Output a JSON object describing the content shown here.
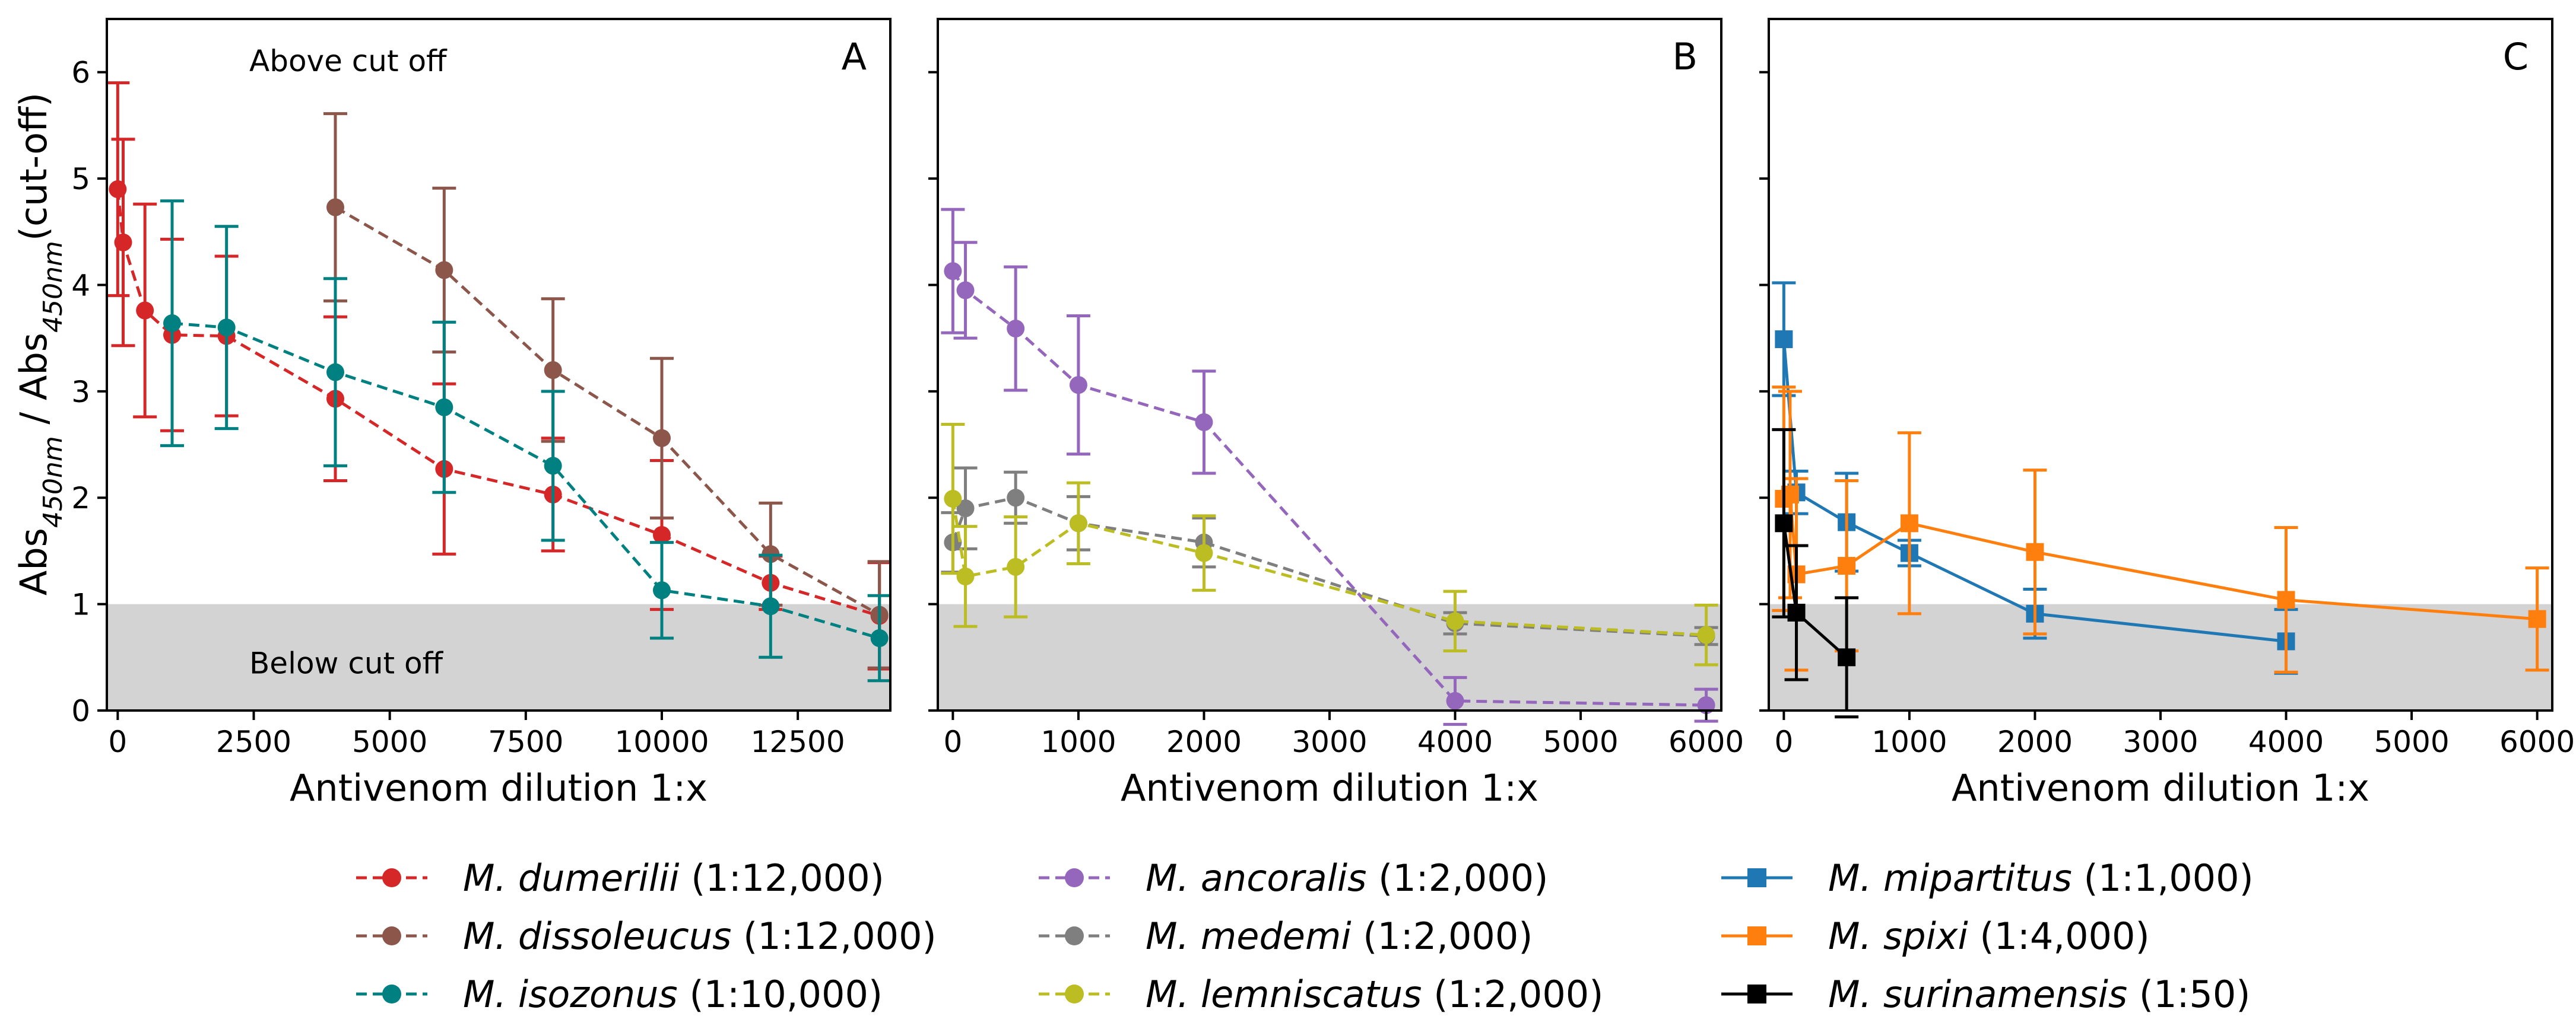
{
  "chart_data": {
    "type": "line",
    "ylabel": "Abs450nm / Abs450nm(cut-off)",
    "ylabel_parts": {
      "abs": "Abs",
      "sub": "450nm",
      "sep": " / ",
      "suffix": "(cut-off)"
    },
    "ylim": [
      0,
      6.5
    ],
    "yticks": [
      0,
      1,
      2,
      3,
      4,
      5,
      6
    ],
    "cutoff": 1,
    "shaded_region": [
      0,
      1
    ],
    "region_labels": {
      "above": "Above cut off",
      "below": "Below cut off"
    },
    "panels": [
      {
        "letter": "A",
        "xlabel": "Antivenom dilution 1:x",
        "xlim": [
          -200,
          14200
        ],
        "xticks": [
          0,
          2500,
          5000,
          7500,
          10000,
          12500
        ],
        "series": [
          {
            "name": "M. dumerilii",
            "suffix": "(1:12,000)",
            "color": "#d62728",
            "marker": "circle",
            "line": "dashed",
            "x": [
              0,
              100,
              500,
              1000,
              2000,
              4000,
              6000,
              8000,
              10000,
              12000,
              14000
            ],
            "y": [
              4.9,
              4.4,
              3.76,
              3.53,
              3.52,
              2.93,
              2.27,
              2.03,
              1.65,
              1.2,
              0.89
            ],
            "err": [
              1.0,
              0.97,
              1.0,
              0.9,
              0.75,
              0.77,
              0.8,
              0.53,
              0.7,
              0.25,
              0.5
            ]
          },
          {
            "name": "M. dissoleucus",
            "suffix": "(1:12,000)",
            "color": "#8c564b",
            "marker": "circle",
            "line": "dashed",
            "x": [
              4000,
              6000,
              8000,
              10000,
              12000,
              14000
            ],
            "y": [
              4.73,
              4.14,
              3.2,
              2.56,
              1.47,
              0.9
            ],
            "err": [
              0.88,
              0.77,
              0.67,
              0.75,
              0.48,
              0.5
            ]
          },
          {
            "name": "M. isozonus",
            "suffix": "(1:10,000)",
            "color": "#008080",
            "marker": "circle",
            "line": "dashed",
            "x": [
              1000,
              2000,
              4000,
              6000,
              8000,
              10000,
              12000,
              14000
            ],
            "y": [
              3.64,
              3.6,
              3.18,
              2.85,
              2.3,
              1.13,
              0.98,
              0.68
            ],
            "err": [
              1.15,
              0.95,
              0.88,
              0.8,
              0.7,
              0.45,
              0.48,
              0.4
            ]
          }
        ]
      },
      {
        "letter": "B",
        "xlabel": "Antivenom dilution 1:x",
        "xlim": [
          -120,
          6120
        ],
        "xticks": [
          0,
          1000,
          2000,
          3000,
          4000,
          5000,
          6000
        ],
        "series": [
          {
            "name": "M. ancoralis",
            "suffix": "(1:2,000)",
            "color": "#9467bd",
            "marker": "circle",
            "line": "dashed",
            "x": [
              0,
              100,
              500,
              1000,
              2000,
              4000,
              6000
            ],
            "y": [
              4.13,
              3.95,
              3.59,
              3.06,
              2.71,
              0.09,
              0.05
            ],
            "err": [
              0.58,
              0.45,
              0.58,
              0.65,
              0.48,
              0.22,
              0.15
            ]
          },
          {
            "name": "M. medemi",
            "suffix": "(1:2,000)",
            "color": "#7f7f7f",
            "marker": "circle",
            "line": "dashed",
            "x": [
              0,
              100,
              500,
              1000,
              2000,
              4000,
              6000
            ],
            "y": [
              1.58,
              1.9,
              2.0,
              1.76,
              1.58,
              0.82,
              0.7
            ],
            "err": [
              0.28,
              0.38,
              0.24,
              0.25,
              0.23,
              0.1,
              0.08
            ]
          },
          {
            "name": "M. lemniscatus",
            "suffix": "(1:2,000)",
            "color": "#bcbd22",
            "marker": "circle",
            "line": "dashed",
            "x": [
              0,
              100,
              500,
              1000,
              2000,
              4000,
              6000
            ],
            "y": [
              1.99,
              1.26,
              1.35,
              1.76,
              1.48,
              0.84,
              0.71
            ],
            "err": [
              0.7,
              0.47,
              0.47,
              0.38,
              0.35,
              0.28,
              0.28
            ]
          }
        ]
      },
      {
        "letter": "C",
        "xlabel": "Antivenom dilution 1:x",
        "xlim": [
          -120,
          6120
        ],
        "xticks": [
          0,
          1000,
          2000,
          3000,
          4000,
          5000,
          6000
        ],
        "series": [
          {
            "name": "M. mipartitus",
            "suffix": "(1:1,000)",
            "color": "#1f77b4",
            "marker": "square",
            "line": "solid",
            "x": [
              0,
              100,
              500,
              1000,
              2000,
              4000
            ],
            "y": [
              3.49,
              2.05,
              1.77,
              1.48,
              0.91,
              0.65
            ],
            "err": [
              0.53,
              0.2,
              0.46,
              0.12,
              0.23,
              0.3
            ]
          },
          {
            "name": "M. spixi",
            "suffix": "(1:4,000)",
            "color": "#ff7f0e",
            "marker": "square",
            "line": "solid",
            "x": [
              0,
              50,
              100,
              500,
              1000,
              2000,
              4000,
              6000
            ],
            "y": [
              1.99,
              2.03,
              1.28,
              1.36,
              1.76,
              1.49,
              1.04,
              0.86
            ],
            "err": [
              1.05,
              0.97,
              0.9,
              0.8,
              0.85,
              0.77,
              0.68,
              0.48
            ]
          },
          {
            "name": "M. surinamensis",
            "suffix": "(1:50)",
            "color": "#000000",
            "marker": "square",
            "line": "solid",
            "x": [
              0,
              100,
              500
            ],
            "y": [
              1.76,
              0.92,
              0.5
            ],
            "err": [
              0.88,
              0.63,
              0.56
            ]
          }
        ]
      }
    ],
    "legend_position": "bottom"
  }
}
